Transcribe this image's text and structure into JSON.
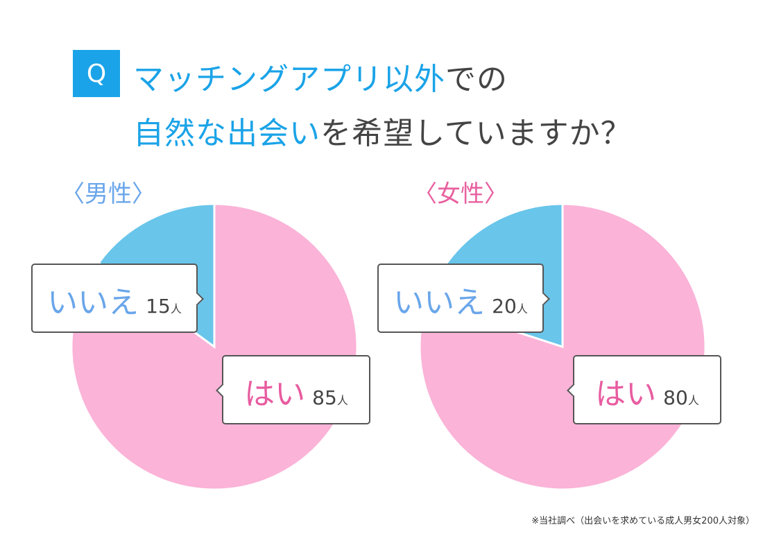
{
  "title": {
    "q": "Q",
    "line1_blue": "マッチングアプリ以外",
    "line1_gray": "での",
    "line2_blue": "自然な出会い",
    "line2_gray": "を希望していますか？"
  },
  "colors": {
    "yes": "#fbb3d8",
    "no": "#69c5ea",
    "male": "#6aa6ea",
    "female": "#e8609f",
    "yes_text": "#e85ca0",
    "no_text": "#6aa6ea"
  },
  "chart_data": [
    {
      "type": "pie",
      "title": "〈男性〉",
      "categories": [
        "はい",
        "いいえ"
      ],
      "values": [
        85,
        15
      ],
      "unit": "人"
    },
    {
      "type": "pie",
      "title": "〈女性〉",
      "categories": [
        "はい",
        "いいえ"
      ],
      "values": [
        80,
        20
      ],
      "unit": "人"
    }
  ],
  "footnote": "※当社調べ（出会いを求めている成人男女200人対象）"
}
